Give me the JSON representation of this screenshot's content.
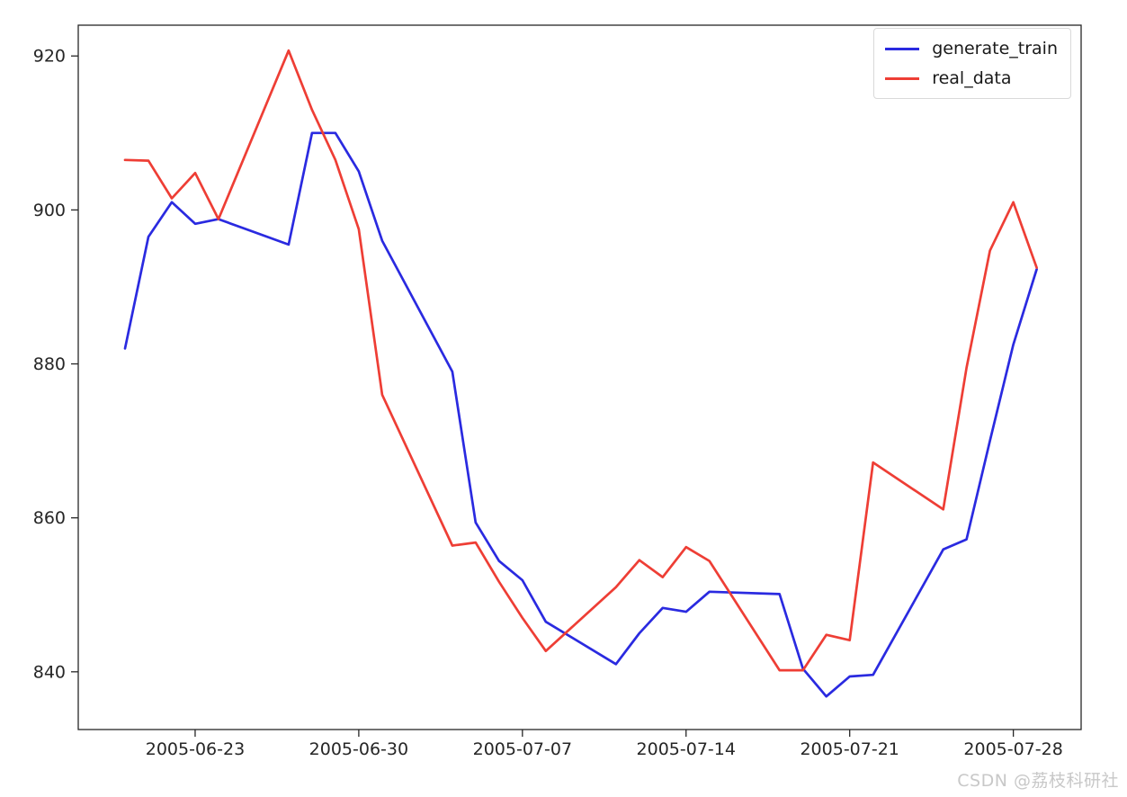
{
  "watermark": "CSDN @荔枝科研社",
  "colors": {
    "axis": "#262626",
    "tick_label": "#262626",
    "background": "#ffffff",
    "legend_border": "#d9d9d9",
    "watermark": "#c8c8c8"
  },
  "chart_data": {
    "type": "line",
    "title": "",
    "xlabel": "",
    "ylabel": "",
    "grid": false,
    "legend_position": "upper right",
    "x_start_date": "2005-06-18",
    "xlim_days": [
      0,
      42.9
    ],
    "ylim": [
      832.5,
      924
    ],
    "yticks": [
      840,
      860,
      880,
      900,
      920
    ],
    "xticks": [
      "2005-06-23",
      "2005-06-30",
      "2005-07-07",
      "2005-07-14",
      "2005-07-21",
      "2005-07-28"
    ],
    "x": [
      "2005-06-20",
      "2005-06-21",
      "2005-06-22",
      "2005-06-23",
      "2005-06-24",
      "2005-06-27",
      "2005-06-28",
      "2005-06-29",
      "2005-06-30",
      "2005-07-01",
      "2005-07-04",
      "2005-07-05",
      "2005-07-06",
      "2005-07-07",
      "2005-07-08",
      "2005-07-11",
      "2005-07-12",
      "2005-07-13",
      "2005-07-14",
      "2005-07-15",
      "2005-07-18",
      "2005-07-19",
      "2005-07-20",
      "2005-07-21",
      "2005-07-22",
      "2005-07-25",
      "2005-07-26",
      "2005-07-27",
      "2005-07-28",
      "2005-07-29"
    ],
    "series": [
      {
        "name": "generate_train",
        "color": "#2a2ae0",
        "values": [
          882.0,
          896.5,
          901.0,
          898.2,
          898.8,
          895.5,
          910.0,
          910.0,
          905.0,
          896.0,
          879.0,
          859.4,
          854.4,
          851.9,
          846.5,
          841.0,
          845.0,
          848.3,
          847.8,
          850.4,
          850.1,
          840.4,
          836.8,
          839.4,
          839.6,
          855.9,
          857.2,
          870.0,
          882.5,
          892.3
        ]
      },
      {
        "name": "real_data",
        "color": "#ee3e35",
        "values": [
          906.5,
          906.4,
          901.5,
          904.8,
          898.8,
          920.7,
          913.0,
          906.5,
          897.5,
          876.0,
          856.4,
          856.8,
          851.7,
          847.0,
          842.7,
          851.0,
          854.5,
          852.3,
          856.2,
          854.4,
          840.2,
          840.2,
          844.8,
          844.1,
          867.2,
          861.1,
          879.5,
          894.7,
          901.0,
          892.5
        ]
      }
    ]
  }
}
